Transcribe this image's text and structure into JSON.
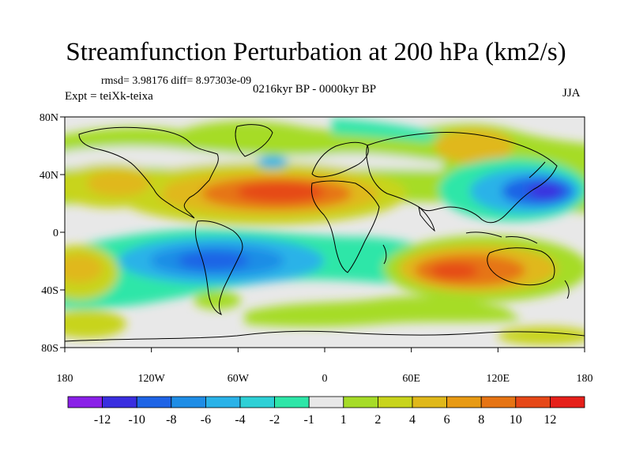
{
  "title": "Streamfunction Perturbation at 200 hPa (km2/s)",
  "stats": "rmsd= 3.98176 diff= 8.97303e-09",
  "period": "0216kyr BP - 0000kyr BP",
  "experiment": "Expt = teiXk-teixa",
  "season": "JJA",
  "map": {
    "lat_ticks": [
      "80N",
      "40N",
      "0",
      "40S",
      "80S"
    ],
    "lon_ticks": [
      "180",
      "120W",
      "60W",
      "0",
      "60E",
      "120E",
      "180"
    ],
    "ocean_color": "#e8e8e8"
  },
  "colorbar": {
    "colors": [
      "#8a20e8",
      "#3a2ee0",
      "#1f64e6",
      "#1f8de6",
      "#2ab2e8",
      "#2ed0d6",
      "#2ee6a8",
      "#e8e8e8",
      "#a6dc28",
      "#c8d41c",
      "#e0b81a",
      "#e89a14",
      "#e67414",
      "#e64818",
      "#e6201a"
    ],
    "labels": [
      "-12",
      "-10",
      "-8",
      "-6",
      "-4",
      "-2",
      "-1",
      "1",
      "2",
      "4",
      "6",
      "8",
      "10",
      "12"
    ]
  }
}
